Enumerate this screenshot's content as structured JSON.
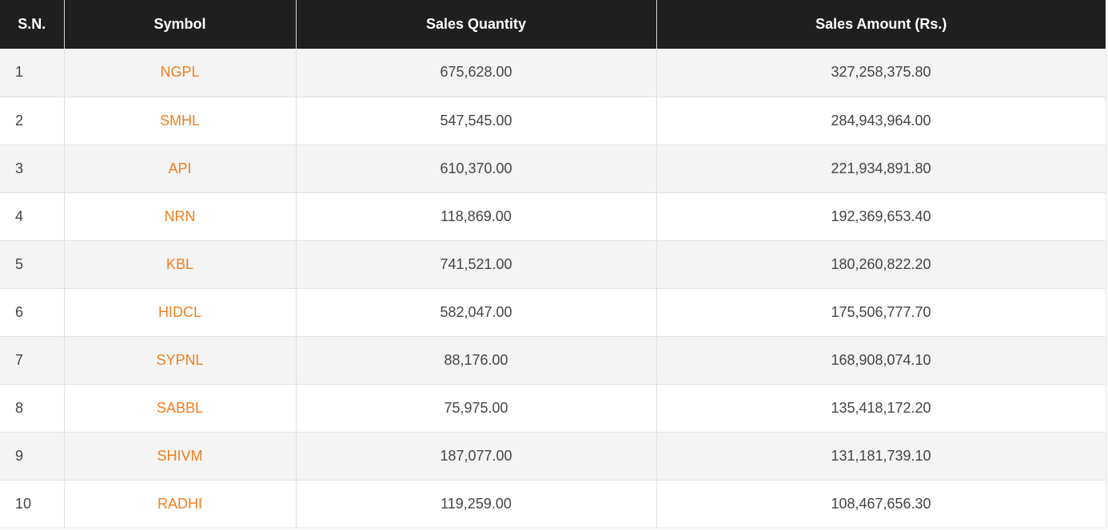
{
  "table": {
    "headers": {
      "sn": "S.N.",
      "symbol": "Symbol",
      "quantity": "Sales Quantity",
      "amount": "Sales Amount (Rs.)"
    },
    "rows": [
      {
        "sn": "1",
        "symbol": "NGPL",
        "quantity": "675,628.00",
        "amount": "327,258,375.80"
      },
      {
        "sn": "2",
        "symbol": "SMHL",
        "quantity": "547,545.00",
        "amount": "284,943,964.00"
      },
      {
        "sn": "3",
        "symbol": "API",
        "quantity": "610,370.00",
        "amount": "221,934,891.80"
      },
      {
        "sn": "4",
        "symbol": "NRN",
        "quantity": "118,869.00",
        "amount": "192,369,653.40"
      },
      {
        "sn": "5",
        "symbol": "KBL",
        "quantity": "741,521.00",
        "amount": "180,260,822.20"
      },
      {
        "sn": "6",
        "symbol": "HIDCL",
        "quantity": "582,047.00",
        "amount": "175,506,777.70"
      },
      {
        "sn": "7",
        "symbol": "SYPNL",
        "quantity": "88,176.00",
        "amount": "168,908,074.10"
      },
      {
        "sn": "8",
        "symbol": "SABBL",
        "quantity": "75,975.00",
        "amount": "135,418,172.20"
      },
      {
        "sn": "9",
        "symbol": "SHIVM",
        "quantity": "187,077.00",
        "amount": "131,181,739.10"
      },
      {
        "sn": "10",
        "symbol": "RADHI",
        "quantity": "119,259.00",
        "amount": "108,467,656.30"
      }
    ]
  },
  "colors": {
    "header_bg": "#1f1f1f",
    "symbol_link": "#f07f1f",
    "row_odd": "#f4f4f4",
    "row_even": "#ffffff"
  }
}
